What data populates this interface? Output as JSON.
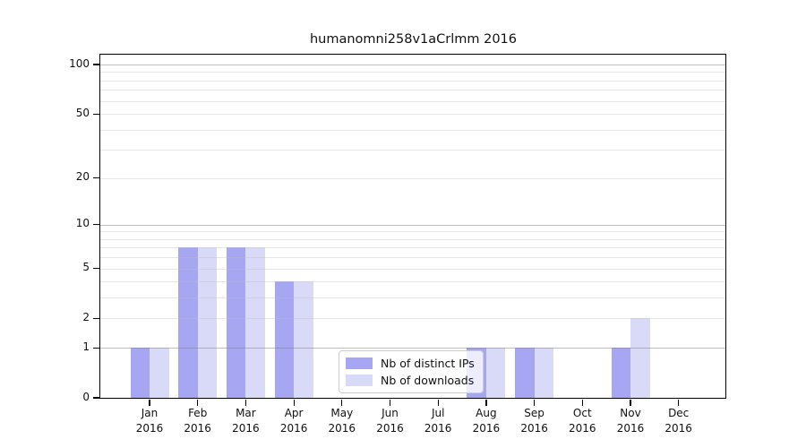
{
  "title": "humanomni258v1aCrlmm 2016",
  "chart_data": {
    "type": "bar",
    "title": "humanomni258v1aCrlmm 2016",
    "categories": [
      "Jan 2016",
      "Feb 2016",
      "Mar 2016",
      "Apr 2016",
      "May 2016",
      "Jun 2016",
      "Jul 2016",
      "Aug 2016",
      "Sep 2016",
      "Oct 2016",
      "Nov 2016",
      "Dec 2016"
    ],
    "month_labels": [
      "Jan",
      "Feb",
      "Mar",
      "Apr",
      "May",
      "Jun",
      "Jul",
      "Aug",
      "Sep",
      "Oct",
      "Nov",
      "Dec"
    ],
    "year_label": "2016",
    "series": [
      {
        "name": "Nb of distinct IPs",
        "color": "#a6a6f2",
        "values": [
          1,
          7,
          7,
          4,
          0,
          0,
          0,
          1,
          1,
          0,
          1,
          0
        ]
      },
      {
        "name": "Nb of downloads",
        "color": "#d9d9f8",
        "values": [
          1,
          7,
          7,
          4,
          0,
          0,
          0,
          1,
          1,
          0,
          2,
          0
        ]
      }
    ],
    "xlabel": "",
    "ylabel": "",
    "y_axis": {
      "scale": "log1p",
      "tick_values": [
        0,
        1,
        2,
        5,
        10,
        20,
        50,
        100
      ],
      "major_grid_values": [
        1,
        10,
        100
      ],
      "minor_grid_values": [
        2,
        3,
        4,
        5,
        6,
        7,
        8,
        9,
        20,
        30,
        40,
        50,
        60,
        70,
        80,
        90
      ],
      "range_displayed": [
        0,
        115
      ]
    },
    "grid": "on",
    "legend": {
      "position": "lower-center-inside",
      "items": [
        "Nb of distinct IPs",
        "Nb of downloads"
      ]
    }
  }
}
